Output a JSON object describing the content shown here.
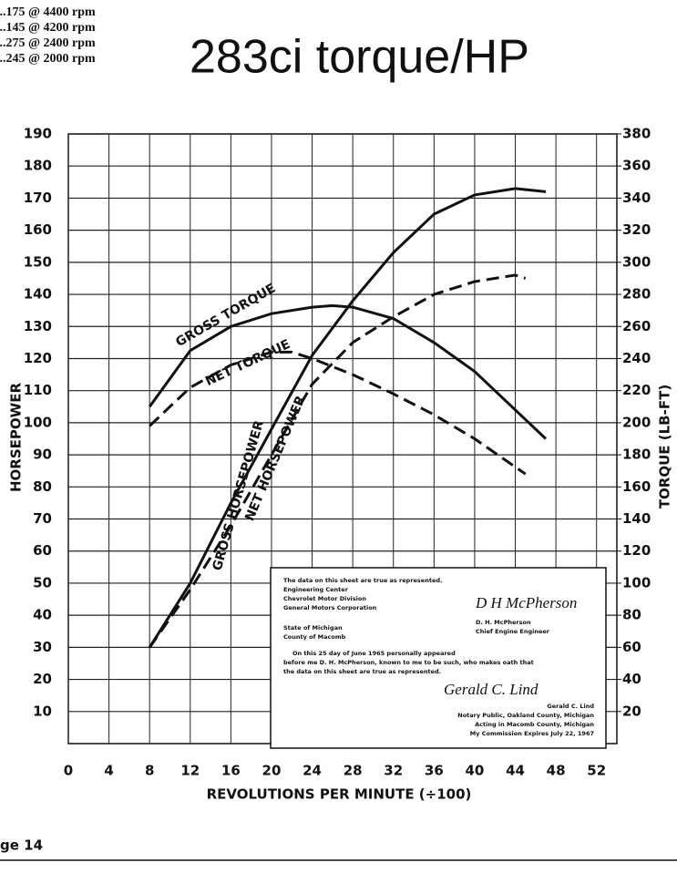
{
  "chart_data": {
    "type": "line",
    "title": "283ci torque/HP",
    "spec_lines": [
      "...175 @ 4400 rpm",
      "...145 @ 4200 rpm",
      "...275 @ 2400 rpm",
      "...245 @ 2000 rpm"
    ],
    "x_label": "REVOLUTIONS PER MINUTE (÷100)",
    "y_label": "HORSEPOWER",
    "y2_label": "TORQUE (LB-FT)",
    "xlim": [
      0,
      54
    ],
    "xticks": [
      0,
      4,
      8,
      12,
      16,
      20,
      24,
      28,
      32,
      36,
      40,
      44,
      48,
      52
    ],
    "ylim": [
      0,
      190
    ],
    "yticks": [
      10,
      20,
      30,
      40,
      50,
      60,
      70,
      80,
      90,
      100,
      110,
      120,
      130,
      140,
      150,
      160,
      170,
      180,
      190
    ],
    "y2lim": [
      0,
      380
    ],
    "y2ticks": [
      20,
      40,
      60,
      80,
      100,
      120,
      140,
      160,
      180,
      200,
      220,
      240,
      260,
      280,
      300,
      320,
      340,
      360,
      380
    ],
    "grid": true,
    "series": [
      {
        "name": "GROSS HORSEPOWER",
        "color": "#111111",
        "line_style": "solid",
        "x": [
          8,
          12,
          16,
          20,
          24,
          28,
          32,
          36,
          40,
          44,
          47
        ],
        "values": [
          30,
          50,
          75,
          98,
          121,
          138,
          153,
          165,
          171,
          173,
          172
        ]
      },
      {
        "name": "NET HORSEPOWER",
        "color": "#111111",
        "line_style": "dashed",
        "x": [
          8,
          12,
          16,
          20,
          24,
          28,
          32,
          36,
          40,
          44,
          45
        ],
        "values": [
          30,
          48,
          68,
          90,
          112,
          125,
          133,
          140,
          144,
          146,
          145
        ]
      },
      {
        "name": "GROSS TORQUE",
        "color": "#111111",
        "line_style": "solid",
        "axis": "y2",
        "x": [
          8,
          12,
          16,
          20,
          24,
          26,
          28,
          32,
          36,
          40,
          44,
          47
        ],
        "values": [
          210,
          245,
          260,
          268,
          272,
          273,
          272,
          265,
          250,
          232,
          208,
          190
        ]
      },
      {
        "name": "NET TORQUE",
        "color": "#111111",
        "line_style": "dashed",
        "axis": "y2",
        "x": [
          8,
          12,
          16,
          20,
          22,
          24,
          28,
          32,
          36,
          40,
          45
        ],
        "values": [
          198,
          222,
          236,
          244,
          244,
          240,
          230,
          218,
          205,
          190,
          168
        ]
      }
    ],
    "notary": {
      "lines_left": [
        "The data on this sheet are true as represented.",
        "Engineering Center",
        "Chevrolet Motor Division",
        "General Motors Corporation"
      ],
      "signature_1": "D H McPherson",
      "signer_1": [
        "D. H. McPherson",
        "Chief Engine Engineer"
      ],
      "state_lines": [
        "State of Michigan",
        "County of Macomb"
      ],
      "oath": [
        "On this 25 day of June 1965 personally appeared",
        "before me D. H. McPherson, known to me to be such, who makes oath that",
        "the data on this sheet are true as represented."
      ],
      "signature_2": "Gerald C. Lind",
      "signer_2": [
        "Gerald C. Lind",
        "Notary Public, Oakland County, Michigan",
        "Acting in Macomb County, Michigan",
        "My Commission Expires July 22, 1967"
      ]
    },
    "footer": "ge 14"
  }
}
